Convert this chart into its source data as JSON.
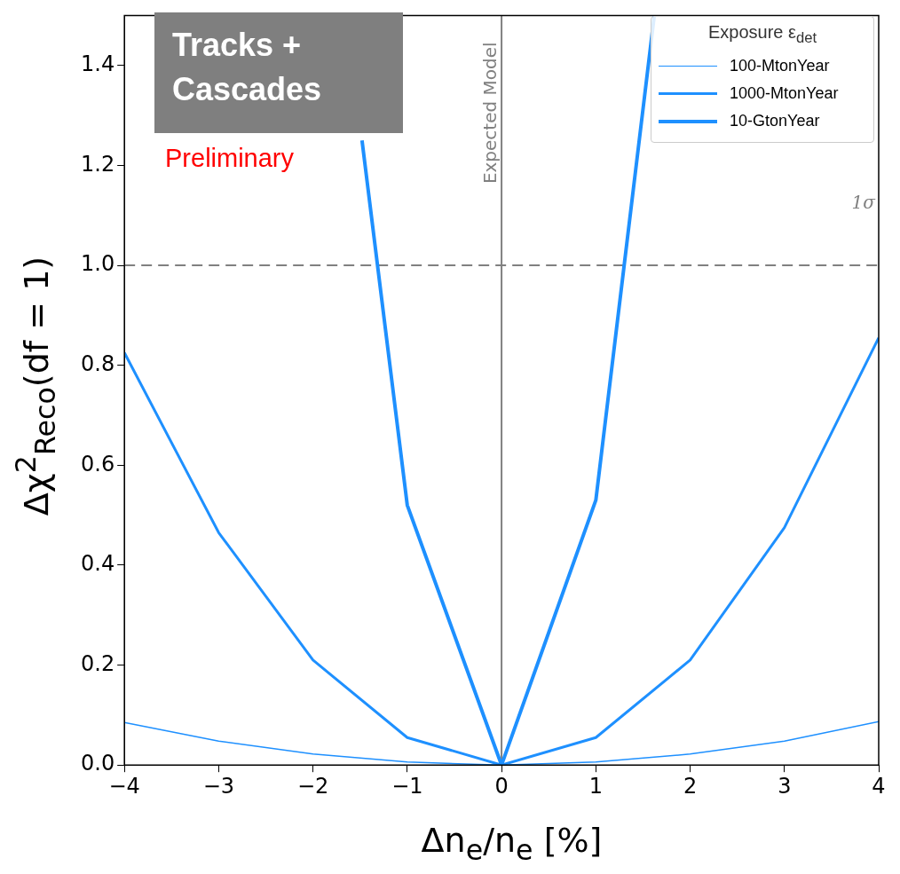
{
  "chart_data": {
    "type": "line",
    "xlabel": "Δn$_{e}$/n$_{e}$ [%]",
    "ylabel": "Δχ$^{2}$$_{Reco}$(df = 1)",
    "legend_title": "Exposure ε$_{det}$",
    "x": [
      -4,
      -3,
      -2,
      -1,
      0,
      1,
      2,
      3,
      4
    ],
    "series": [
      {
        "name": "100-MtonYear",
        "color": "#1e90ff",
        "values": [
          0.085,
          0.048,
          0.022,
          0.006,
          0,
          0.006,
          0.022,
          0.048,
          0.087
        ]
      },
      {
        "name": "1000-MtonYear",
        "color": "#1e90ff",
        "values": [
          0.825,
          0.465,
          0.21,
          0.055,
          0,
          0.055,
          0.21,
          0.475,
          0.855
        ]
      },
      {
        "name": "10-GtonYear",
        "color": "#1e90ff",
        "x": [
          -1.48,
          -1,
          0,
          1,
          1.62
        ],
        "values": [
          1.25,
          0.52,
          0,
          0.53,
          1.5
        ]
      }
    ],
    "xlim": [
      -4,
      4
    ],
    "xticks": [
      {
        "value": -4,
        "label": "−4"
      },
      {
        "value": -3,
        "label": "−3"
      },
      {
        "value": -2,
        "label": "−2"
      },
      {
        "value": -1,
        "label": "−1"
      },
      0,
      1,
      2,
      3,
      4
    ],
    "ylim": [
      0,
      1.5
    ],
    "yticks": [
      {
        "value": 0,
        "label": "0.0"
      },
      0.2,
      0.4,
      0.6,
      0.8,
      {
        "value": 1,
        "label": "1.0"
      },
      1.2,
      1.4
    ],
    "ref_lines": [
      {
        "axis": "x",
        "value": 0,
        "label": "Expected Model",
        "color": "#808080",
        "line_style": "solid"
      },
      {
        "axis": "y",
        "value": 1,
        "label": "1σ",
        "color": "#808080",
        "line_style": "dashed"
      }
    ],
    "annotations": [
      "Tracks + Cascades",
      "Preliminary"
    ],
    "legend": "top right",
    "grid": false,
    "marker": "none",
    "line_style": "solid"
  }
}
